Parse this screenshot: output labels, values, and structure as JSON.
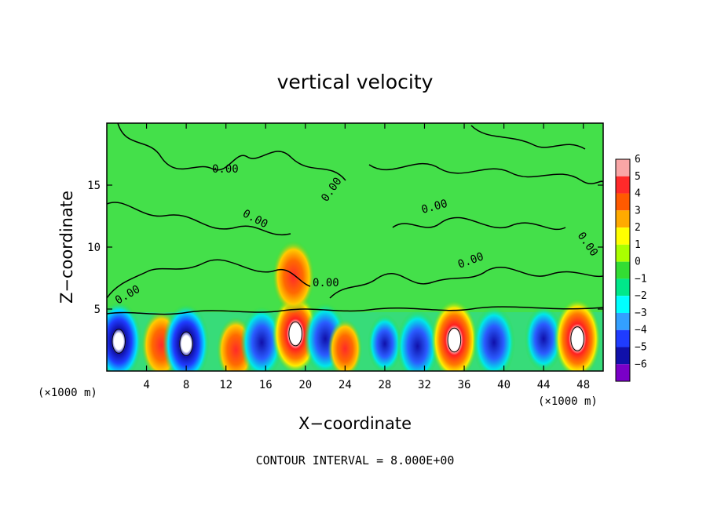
{
  "chart_data": {
    "type": "heatmap",
    "title": "vertical velocity",
    "xlabel": "X−coordinate",
    "ylabel": "Z−coordinate",
    "x_units": "(×1000 m)",
    "x_units_right": "(×1000 m)",
    "xlim": [
      0,
      50
    ],
    "ylim": [
      0,
      20
    ],
    "x_ticks": [
      4,
      8,
      12,
      16,
      20,
      24,
      28,
      32,
      36,
      40,
      44,
      48
    ],
    "y_ticks": [
      5,
      10,
      15
    ],
    "colorbar": {
      "ticks": [
        6,
        5,
        4,
        3,
        2,
        1,
        0,
        -1,
        -2,
        -3,
        -4,
        -5,
        -6
      ],
      "tick_labels": [
        "6",
        "5",
        "4",
        "3",
        "2",
        "1",
        "0",
        "−1",
        "−2",
        "−3",
        "−4",
        "−5",
        "−6"
      ],
      "colors": [
        "#f9a6a6",
        "#ff2a2a",
        "#ff5a00",
        "#ffaa00",
        "#ffff00",
        "#aaff00",
        "#33dd33",
        "#00e88a",
        "#00ffff",
        "#33a0ff",
        "#1f3cff",
        "#1010aa",
        "#7a00c8"
      ]
    },
    "contour_label": "0.00",
    "contour_interval_text": "CONTOUR INTERVAL = 8.000E+00",
    "background_value": 0,
    "cells": [
      {
        "x": 1.2,
        "z": 2.4,
        "w": -6
      },
      {
        "x": 5.5,
        "z": 2.1,
        "w": 4.5
      },
      {
        "x": 8.0,
        "z": 2.2,
        "w": -6
      },
      {
        "x": 13.0,
        "z": 1.7,
        "w": 4
      },
      {
        "x": 15.6,
        "z": 2.3,
        "w": -5
      },
      {
        "x": 19.0,
        "z": 3.0,
        "w": 6
      },
      {
        "x": 18.8,
        "z": 7.6,
        "w": 5
      },
      {
        "x": 22.0,
        "z": 2.6,
        "w": -5
      },
      {
        "x": 24.0,
        "z": 1.8,
        "w": 3
      },
      {
        "x": 28.0,
        "z": 2.2,
        "w": -3
      },
      {
        "x": 31.3,
        "z": 2.0,
        "w": -5
      },
      {
        "x": 35.0,
        "z": 2.5,
        "w": 6
      },
      {
        "x": 39.0,
        "z": 2.3,
        "w": -5
      },
      {
        "x": 44.0,
        "z": 2.6,
        "w": -4
      },
      {
        "x": 47.4,
        "z": 2.6,
        "w": 6
      }
    ]
  }
}
